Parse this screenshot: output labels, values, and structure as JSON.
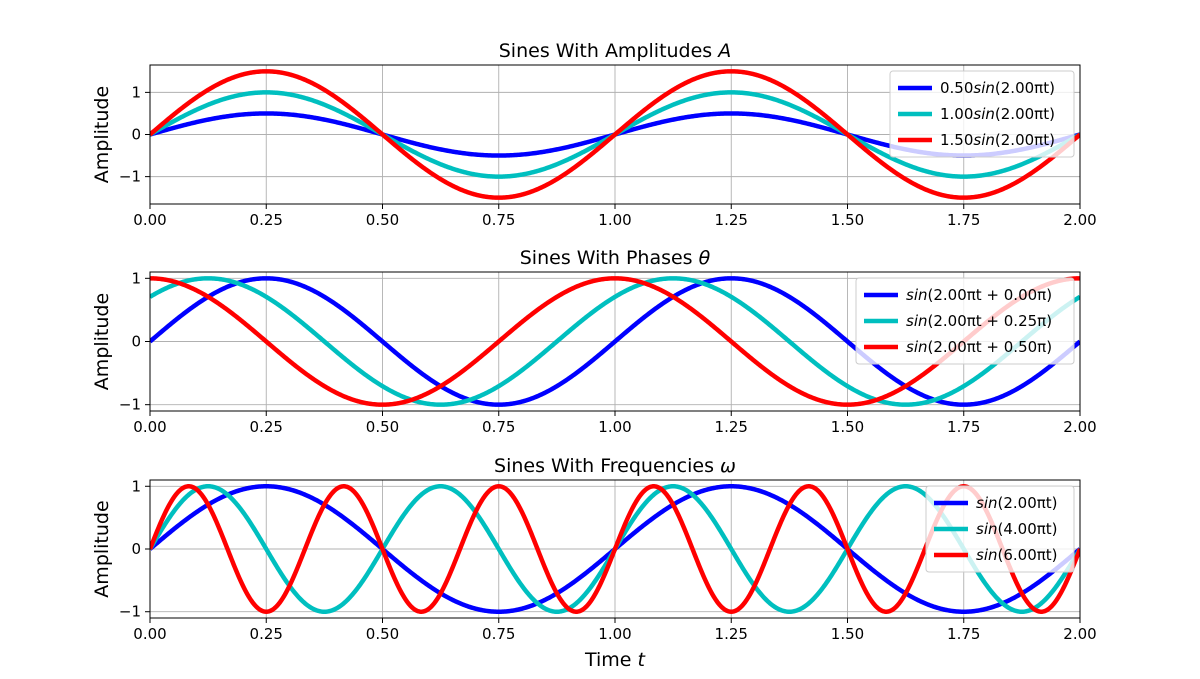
{
  "chart_data": [
    {
      "type": "line",
      "title_text": "Sines With Amplitudes ",
      "title_symbol": "A",
      "ylabel": "Amplitude",
      "xlabel_text": "",
      "xlabel_symbol": "",
      "xlim": [
        0,
        2
      ],
      "ylim": [
        -1.65,
        1.65
      ],
      "xticks": [
        0,
        0.25,
        0.5,
        0.75,
        1,
        1.25,
        1.5,
        1.75,
        2
      ],
      "xtick_labels": [
        "0.00",
        "0.25",
        "0.50",
        "0.75",
        "1.00",
        "1.25",
        "1.50",
        "1.75",
        "2.00"
      ],
      "yticks": [
        -1,
        0,
        1
      ],
      "ytick_labels": [
        "−1",
        "0",
        "1"
      ],
      "grid": true,
      "legend_position": "top-right",
      "series": [
        {
          "name": "0.50sin(2.00πt)",
          "name_prefix": "0.50",
          "name_fn": "sin",
          "name_arg": "(2.00πt)",
          "color": "#0000ff",
          "amplitude": 0.5,
          "frequency_pi_multiple": 2,
          "phase_pi_multiple": 0
        },
        {
          "name": "1.00sin(2.00πt)",
          "name_prefix": "1.00",
          "name_fn": "sin",
          "name_arg": "(2.00πt)",
          "color": "#00bfbf",
          "amplitude": 1.0,
          "frequency_pi_multiple": 2,
          "phase_pi_multiple": 0
        },
        {
          "name": "1.50sin(2.00πt)",
          "name_prefix": "1.50",
          "name_fn": "sin",
          "name_arg": "(2.00πt)",
          "color": "#ff0000",
          "amplitude": 1.5,
          "frequency_pi_multiple": 2,
          "phase_pi_multiple": 0
        }
      ]
    },
    {
      "type": "line",
      "title_text": "Sines With Phases ",
      "title_symbol": "θ",
      "ylabel": "Amplitude",
      "xlabel_text": "",
      "xlabel_symbol": "",
      "xlim": [
        0,
        2
      ],
      "ylim": [
        -1.1,
        1.1
      ],
      "xticks": [
        0,
        0.25,
        0.5,
        0.75,
        1,
        1.25,
        1.5,
        1.75,
        2
      ],
      "xtick_labels": [
        "0.00",
        "0.25",
        "0.50",
        "0.75",
        "1.00",
        "1.25",
        "1.50",
        "1.75",
        "2.00"
      ],
      "yticks": [
        -1,
        0,
        1
      ],
      "ytick_labels": [
        "−1",
        "0",
        "1"
      ],
      "grid": true,
      "legend_position": "top-right",
      "series": [
        {
          "name": "sin(2.00πt + 0.00π)",
          "name_prefix": "",
          "name_fn": "sin",
          "name_arg": "(2.00πt + 0.00π)",
          "color": "#0000ff",
          "amplitude": 1,
          "frequency_pi_multiple": 2,
          "phase_pi_multiple": 0.0
        },
        {
          "name": "sin(2.00πt + 0.25π)",
          "name_prefix": "",
          "name_fn": "sin",
          "name_arg": "(2.00πt + 0.25π)",
          "color": "#00bfbf",
          "amplitude": 1,
          "frequency_pi_multiple": 2,
          "phase_pi_multiple": 0.25
        },
        {
          "name": "sin(2.00πt + 0.50π)",
          "name_prefix": "",
          "name_fn": "sin",
          "name_arg": "(2.00πt + 0.50π)",
          "color": "#ff0000",
          "amplitude": 1,
          "frequency_pi_multiple": 2,
          "phase_pi_multiple": 0.5
        }
      ]
    },
    {
      "type": "line",
      "title_text": "Sines With Frequencies ",
      "title_symbol": "ω",
      "ylabel": "Amplitude",
      "xlabel_text": "Time ",
      "xlabel_symbol": "t",
      "xlim": [
        0,
        2
      ],
      "ylim": [
        -1.1,
        1.1
      ],
      "xticks": [
        0,
        0.25,
        0.5,
        0.75,
        1,
        1.25,
        1.5,
        1.75,
        2
      ],
      "xtick_labels": [
        "0.00",
        "0.25",
        "0.50",
        "0.75",
        "1.00",
        "1.25",
        "1.50",
        "1.75",
        "2.00"
      ],
      "yticks": [
        -1,
        0,
        1
      ],
      "ytick_labels": [
        "−1",
        "0",
        "1"
      ],
      "grid": true,
      "legend_position": "top-right",
      "series": [
        {
          "name": "sin(2.00πt)",
          "name_prefix": "",
          "name_fn": "sin",
          "name_arg": "(2.00πt)",
          "color": "#0000ff",
          "amplitude": 1,
          "frequency_pi_multiple": 2,
          "phase_pi_multiple": 0
        },
        {
          "name": "sin(4.00πt)",
          "name_prefix": "",
          "name_fn": "sin",
          "name_arg": "(4.00πt)",
          "color": "#00bfbf",
          "amplitude": 1,
          "frequency_pi_multiple": 4,
          "phase_pi_multiple": 0
        },
        {
          "name": "sin(6.00πt)",
          "name_prefix": "",
          "name_fn": "sin",
          "name_arg": "(6.00πt)",
          "color": "#ff0000",
          "amplitude": 1,
          "frequency_pi_multiple": 6,
          "phase_pi_multiple": 0
        }
      ]
    }
  ]
}
